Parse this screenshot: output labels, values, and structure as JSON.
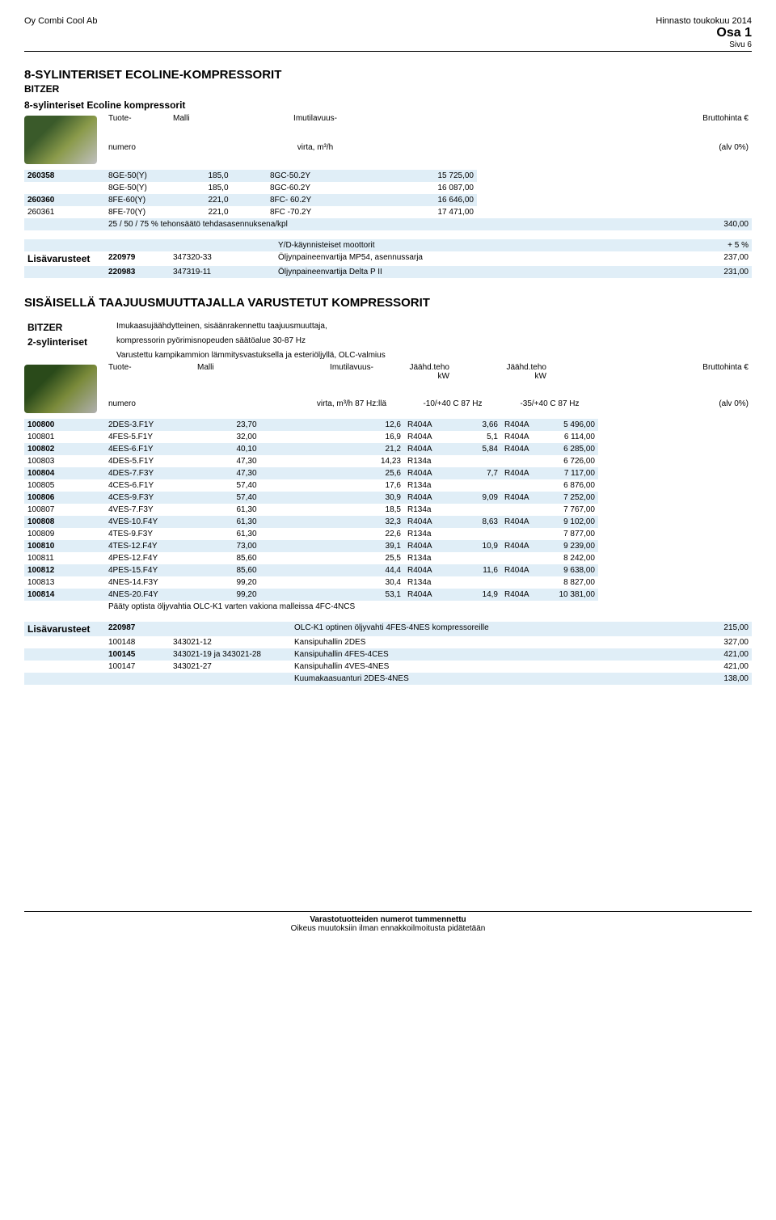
{
  "header": {
    "company": "Oy Combi Cool Ab",
    "priceList": "Hinnasto toukokuu 2014",
    "part": "Osa 1",
    "page": "Sivu 6"
  },
  "section1": {
    "title": "8-SYLINTERISET ECOLINE-KOMPRESSORIT",
    "brand": "BITZER",
    "subtitle": "8-sylinteriset Ecoline kompressorit",
    "headers": {
      "col1": "Tuote-",
      "col1b": "numero",
      "col2": "Malli",
      "col3": "Imutilavuus-",
      "col3b": "virta,  m³/h",
      "col4": "Bruttohinta €",
      "col4b": "(alv 0%)"
    },
    "rows": [
      {
        "num": "260358",
        "model": "8GE-50(Y)",
        "flow": "185,0",
        "code": "8GC-50.2Y",
        "price": "15 725,00",
        "bold": true,
        "light": true
      },
      {
        "num": "",
        "model": "8GE-50(Y)",
        "flow": "185,0",
        "code": "8GC-60.2Y",
        "price": "16 087,00",
        "bold": false,
        "light": false
      },
      {
        "num": "260360",
        "model": "8FE-60(Y)",
        "flow": "221,0",
        "code": "8FC- 60.2Y",
        "price": "16 646,00",
        "bold": true,
        "light": true
      },
      {
        "num": "260361",
        "model": "8FE-70(Y)",
        "flow": "221,0",
        "code": "8FC -70.2Y",
        "price": "17 471,00",
        "bold": false,
        "light": false
      }
    ],
    "powerNote": {
      "label": "25 / 50 / 75 % tehonsäätö tehdasasennuksena/kpl",
      "price": "340,00",
      "light": true
    }
  },
  "accessories1": {
    "label": "Lisävarusteet",
    "motorNote": {
      "text": "Y/D-käynnisteiset moottorit",
      "val": "+ 5 %"
    },
    "rows": [
      {
        "num": "220979",
        "code": "347320-33",
        "desc": "Öljynpaineenvartija MP54, asennussarja",
        "price": "237,00",
        "bold": true
      },
      {
        "num": "220983",
        "code": "347319-11",
        "desc": "Öljynpaineenvartija Delta P II",
        "price": "231,00",
        "bold": true,
        "light": true
      }
    ]
  },
  "section2": {
    "title": "SISÄISELLÄ TAAJUUSMUUTTAJALLA VARUSTETUT KOMPRESSORIT",
    "brand": "BITZER",
    "type": "2-sylinteriset",
    "desc1": "Imukaasujäähdytteinen, sisäänrakennettu taajuusmuuttaja,",
    "desc2": "kompressorin pyörimisnopeuden säätöalue 30-87 Hz",
    "desc3": "Varustettu kampikammion lämmitysvastuksella ja esteriöljyllä, OLC-valmius",
    "headers": {
      "col1": "Tuote-",
      "col1b": "numero",
      "col2": "Malli",
      "col3": "Imutilavuus-",
      "col3b": "virta,  m³/h   87 Hz:llä",
      "col4": "Jäähd.teho kW",
      "col4b": "-10/+40 C 87 Hz",
      "col5": "Jäähd.teho kW",
      "col5b": "-35/+40 C 87 Hz",
      "col6": "Bruttohinta €",
      "col6b": "(alv 0%)"
    },
    "rows": [
      {
        "num": "100800",
        "model": "2DES-3.F1Y",
        "flow": "23,70",
        "c1": "12,6",
        "r1": "R404A",
        "c2": "3,66",
        "r2": "R404A",
        "price": "5 496,00",
        "bold": true,
        "light": true
      },
      {
        "num": "100801",
        "model": "4FES-5.F1Y",
        "flow": "32,00",
        "c1": "16,9",
        "r1": "R404A",
        "c2": "5,1",
        "r2": "R404A",
        "price": "6 114,00",
        "bold": false,
        "light": false
      },
      {
        "num": "100802",
        "model": "4EES-6.F1Y",
        "flow": "40,10",
        "c1": "21,2",
        "r1": "R404A",
        "c2": "5,84",
        "r2": "R404A",
        "price": "6 285,00",
        "bold": true,
        "light": true
      },
      {
        "num": "100803",
        "model": "4DES-5.F1Y",
        "flow": "47,30",
        "c1": "14,23",
        "r1": "R134a",
        "c2": "",
        "r2": "",
        "price": "6 726,00",
        "bold": false,
        "light": false
      },
      {
        "num": "100804",
        "model": "4DES-7.F3Y",
        "flow": "47,30",
        "c1": "25,6",
        "r1": "R404A",
        "c2": "7,7",
        "r2": "R404A",
        "price": "7 117,00",
        "bold": true,
        "light": true
      },
      {
        "num": "100805",
        "model": "4CES-6.F1Y",
        "flow": "57,40",
        "c1": "17,6",
        "r1": "R134a",
        "c2": "",
        "r2": "",
        "price": "6 876,00",
        "bold": false,
        "light": false
      },
      {
        "num": "100806",
        "model": "4CES-9.F3Y",
        "flow": "57,40",
        "c1": "30,9",
        "r1": "R404A",
        "c2": "9,09",
        "r2": "R404A",
        "price": "7 252,00",
        "bold": true,
        "light": true
      },
      {
        "num": "100807",
        "model": "4VES-7.F3Y",
        "flow": "61,30",
        "c1": "18,5",
        "r1": "R134a",
        "c2": "",
        "r2": "",
        "price": "7 767,00",
        "bold": false,
        "light": false
      },
      {
        "num": "100808",
        "model": "4VES-10.F4Y",
        "flow": "61,30",
        "c1": "32,3",
        "r1": "R404A",
        "c2": "8,63",
        "r2": "R404A",
        "price": "9 102,00",
        "bold": true,
        "light": true
      },
      {
        "num": "100809",
        "model": "4TES-9.F3Y",
        "flow": "61,30",
        "c1": "22,6",
        "r1": "R134a",
        "c2": "",
        "r2": "",
        "price": "7 877,00",
        "bold": false,
        "light": false
      },
      {
        "num": "100810",
        "model": "4TES-12.F4Y",
        "flow": "73,00",
        "c1": "39,1",
        "r1": "R404A",
        "c2": "10,9",
        "r2": "R404A",
        "price": "9 239,00",
        "bold": true,
        "light": true
      },
      {
        "num": "100811",
        "model": "4PES-12.F4Y",
        "flow": "85,60",
        "c1": "25,5",
        "r1": "R134a",
        "c2": "",
        "r2": "",
        "price": "8 242,00",
        "bold": false,
        "light": false
      },
      {
        "num": "100812",
        "model": "4PES-15.F4Y",
        "flow": "85,60",
        "c1": "44,4",
        "r1": "R404A",
        "c2": "11,6",
        "r2": "R404A",
        "price": "9 638,00",
        "bold": true,
        "light": true
      },
      {
        "num": "100813",
        "model": "4NES-14.F3Y",
        "flow": "99,20",
        "c1": "30,4",
        "r1": "R134a",
        "c2": "",
        "r2": "",
        "price": "8 827,00",
        "bold": false,
        "light": false
      },
      {
        "num": "100814",
        "model": "4NES-20.F4Y",
        "flow": "99,20",
        "c1": "53,1",
        "r1": "R404A",
        "c2": "14,9",
        "r2": "R404A",
        "price": "10 381,00",
        "bold": true,
        "light": true
      }
    ],
    "footnote": "Pääty optista öljyvahtia OLC-K1 varten vakiona malleissa 4FC-4NCS"
  },
  "accessories2": {
    "label": "Lisävarusteet",
    "rows": [
      {
        "num": "220987",
        "code": "",
        "desc": "OLC-K1 optinen öljyvahti 4FES-4NES kompressoreille",
        "price": "215,00",
        "bold": true,
        "light": true
      },
      {
        "num": "100148",
        "code": "343021-12",
        "desc": "Kansipuhallin 2DES",
        "price": "327,00",
        "bold": false,
        "light": false
      },
      {
        "num": "100145",
        "code": "343021-19 ja 343021-28",
        "desc": "Kansipuhallin 4FES-4CES",
        "price": "421,00",
        "bold": true,
        "light": true
      },
      {
        "num": "100147",
        "code": "343021-27",
        "desc": "Kansipuhallin 4VES-4NES",
        "price": "421,00",
        "bold": false,
        "light": false
      }
    ],
    "sensor": {
      "desc": "Kuumakaasuanturi 2DES-4NES",
      "price": "138,00",
      "light": true
    }
  },
  "footer": {
    "line1": "Varastotuotteiden numerot tummennettu",
    "line2": "Oikeus muutoksiin ilman ennakkoilmoitusta pidätetään"
  },
  "colors": {
    "rowLight": "#e0eef7",
    "textColor": "#000000",
    "background": "#ffffff"
  }
}
